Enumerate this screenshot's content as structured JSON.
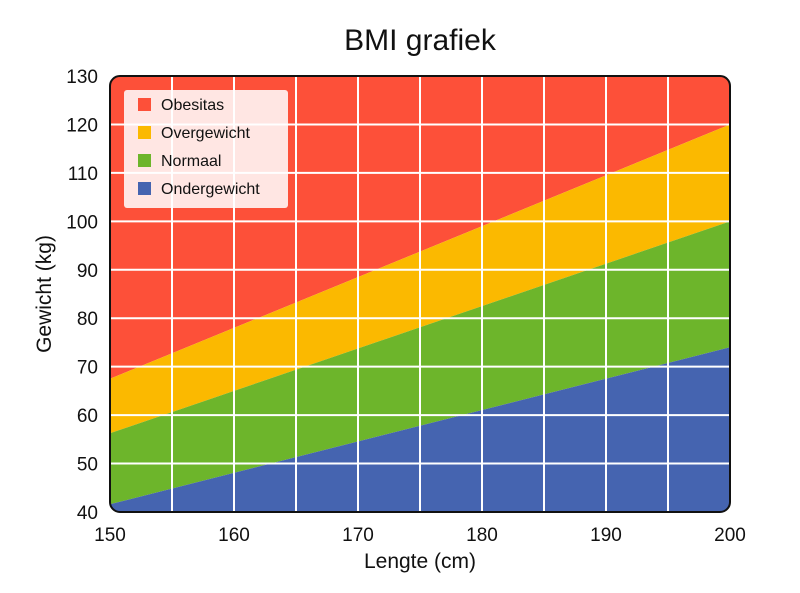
{
  "chart_data": {
    "type": "area",
    "title": "BMI grafiek",
    "xlabel": "Lengte (cm)",
    "ylabel": "Gewicht (kg)",
    "xlim": [
      150,
      200
    ],
    "ylim": [
      40,
      130
    ],
    "x_ticks": [
      150,
      160,
      170,
      180,
      190,
      200
    ],
    "y_ticks": [
      40,
      50,
      60,
      70,
      80,
      90,
      100,
      110,
      120,
      130
    ],
    "x_grid_step": 5,
    "y_grid_step": 10,
    "grid": true,
    "legend_position": "top-left",
    "series": [
      {
        "name": "Obesitas",
        "color": "#fd5039",
        "x": [
          150,
          200
        ],
        "lower": [
          67.5,
          120
        ],
        "upper": [
          130,
          130
        ]
      },
      {
        "name": "Overgewicht",
        "color": "#fbb900",
        "x": [
          150,
          200
        ],
        "lower": [
          56.25,
          100
        ],
        "upper": [
          67.5,
          120
        ]
      },
      {
        "name": "Normaal",
        "color": "#6db52b",
        "x": [
          150,
          200
        ],
        "lower": [
          41.6,
          74
        ],
        "upper": [
          56.25,
          100
        ]
      },
      {
        "name": "Ondergewicht",
        "color": "#4564b0",
        "x": [
          150,
          200
        ],
        "lower": [
          40,
          40
        ],
        "upper": [
          41.6,
          74
        ]
      }
    ]
  }
}
